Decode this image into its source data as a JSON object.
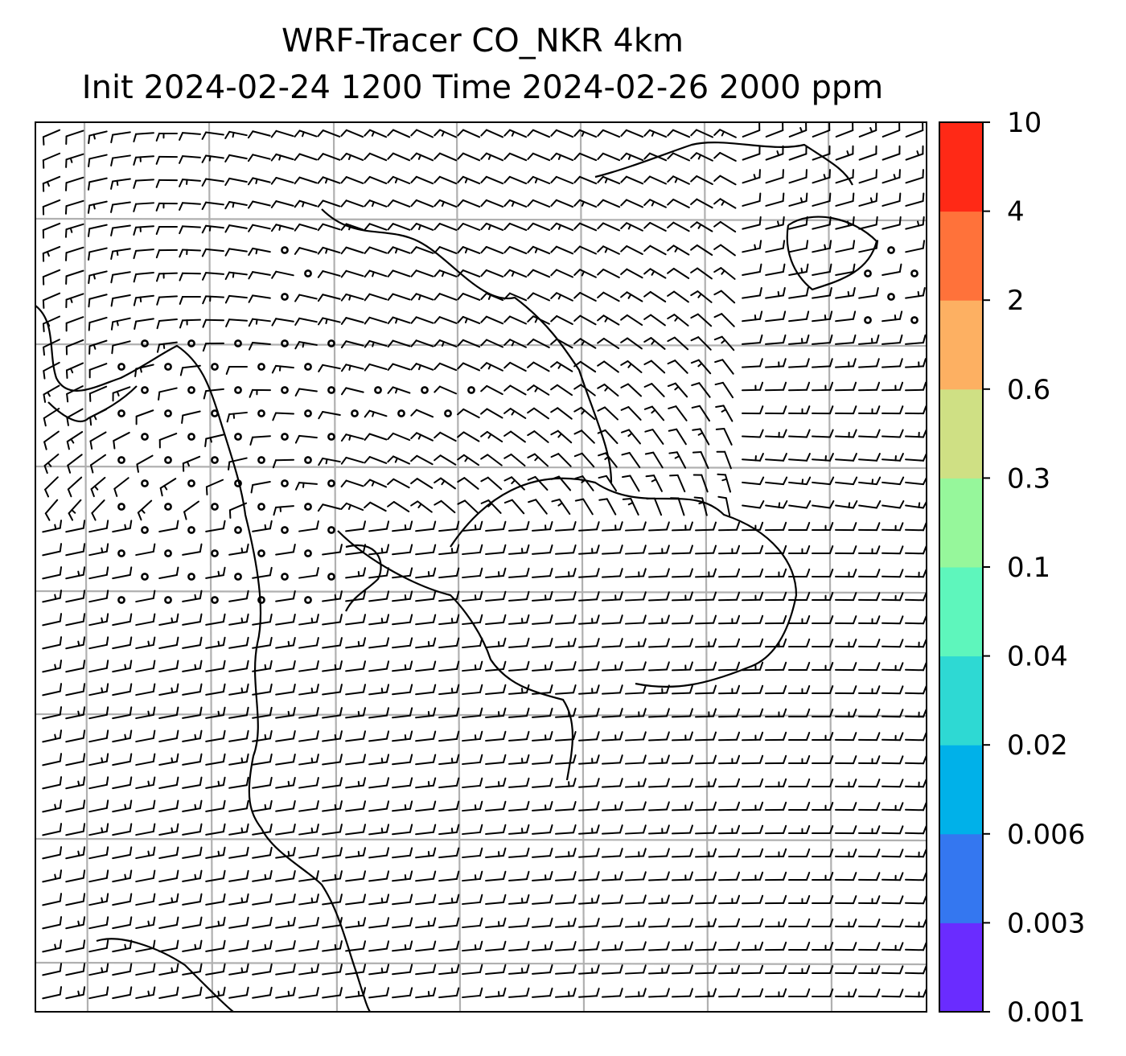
{
  "title": {
    "line1": "WRF-Tracer CO_NKR 4km",
    "line2": "Init 2024-02-24 1200 Time 2024-02-26 2000 ppm"
  },
  "map": {
    "gridlines": true,
    "wind_barbs": true,
    "coastlines": true
  },
  "colorbar": {
    "ticks": [
      "0.001",
      "0.003",
      "0.006",
      "0.02",
      "0.04",
      "0.1",
      "0.3",
      "0.6",
      "2",
      "4",
      "10"
    ],
    "colors": [
      "#6a2cff",
      "#3477f0",
      "#00b1e9",
      "#2ed9d3",
      "#5ef6bc",
      "#96f79b",
      "#cfe084",
      "#fdb062",
      "#ff723a",
      "#ff2916"
    ]
  }
}
